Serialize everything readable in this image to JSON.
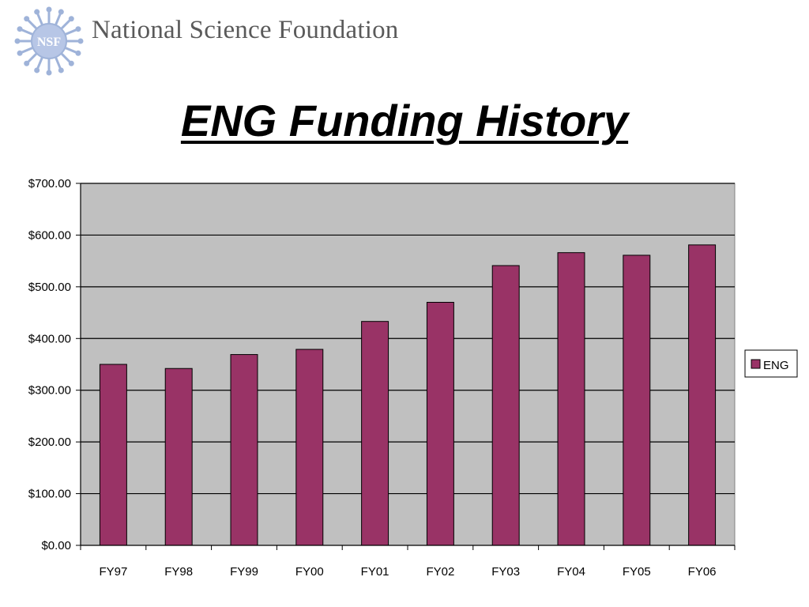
{
  "header": {
    "org_name": "National Science Foundation",
    "logo_text": "NSF"
  },
  "colors": {
    "bar": "#993366",
    "plot_bg": "#c0c0c0",
    "logo": "#9fb3d9"
  },
  "chart_data": {
    "type": "bar",
    "title": "ENG Funding History",
    "categories": [
      "FY97",
      "FY98",
      "FY99",
      "FY00",
      "FY01",
      "FY02",
      "FY03",
      "FY04",
      "FY05",
      "FY06"
    ],
    "series": [
      {
        "name": "ENG",
        "values": [
          350,
          342,
          369,
          379,
          433,
          470,
          541,
          566,
          561,
          581
        ]
      }
    ],
    "ylim": [
      0,
      700
    ],
    "yticks": [
      "$0.00",
      "$100.00",
      "$200.00",
      "$300.00",
      "$400.00",
      "$500.00",
      "$600.00",
      "$700.00"
    ],
    "grid": true,
    "legend_position": "right"
  }
}
